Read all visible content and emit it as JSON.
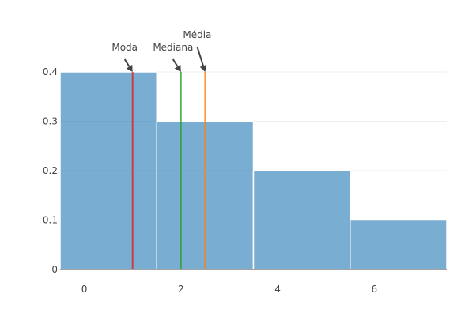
{
  "chart_data": {
    "type": "bar",
    "bins": [
      {
        "x0": -0.5,
        "x1": 1.5,
        "value": 0.4
      },
      {
        "x0": 1.5,
        "x1": 3.5,
        "value": 0.3
      },
      {
        "x0": 3.5,
        "x1": 5.5,
        "value": 0.2
      },
      {
        "x0": 5.5,
        "x1": 7.5,
        "value": 0.1
      }
    ],
    "xlim": [
      -0.5,
      7.5
    ],
    "ylim": [
      0,
      0.4
    ],
    "xticks": [
      {
        "value": 0,
        "label": "0"
      },
      {
        "value": 2,
        "label": "2"
      },
      {
        "value": 4,
        "label": "4"
      },
      {
        "value": 6,
        "label": "6"
      }
    ],
    "yticks": [
      {
        "value": 0,
        "label": "0"
      },
      {
        "value": 0.1,
        "label": "0.1"
      },
      {
        "value": 0.2,
        "label": "0.2"
      },
      {
        "value": 0.3,
        "label": "0.3"
      },
      {
        "value": 0.4,
        "label": "0.4"
      }
    ],
    "grid": true,
    "lines": [
      {
        "x": 1,
        "label": "Moda",
        "color": "#d62728"
      },
      {
        "x": 2,
        "label": "Mediana",
        "color": "#2ca02c"
      },
      {
        "x": 2.5,
        "label": "Média",
        "color": "#ff7f0e"
      }
    ],
    "bar_color": "#1f77b4"
  }
}
